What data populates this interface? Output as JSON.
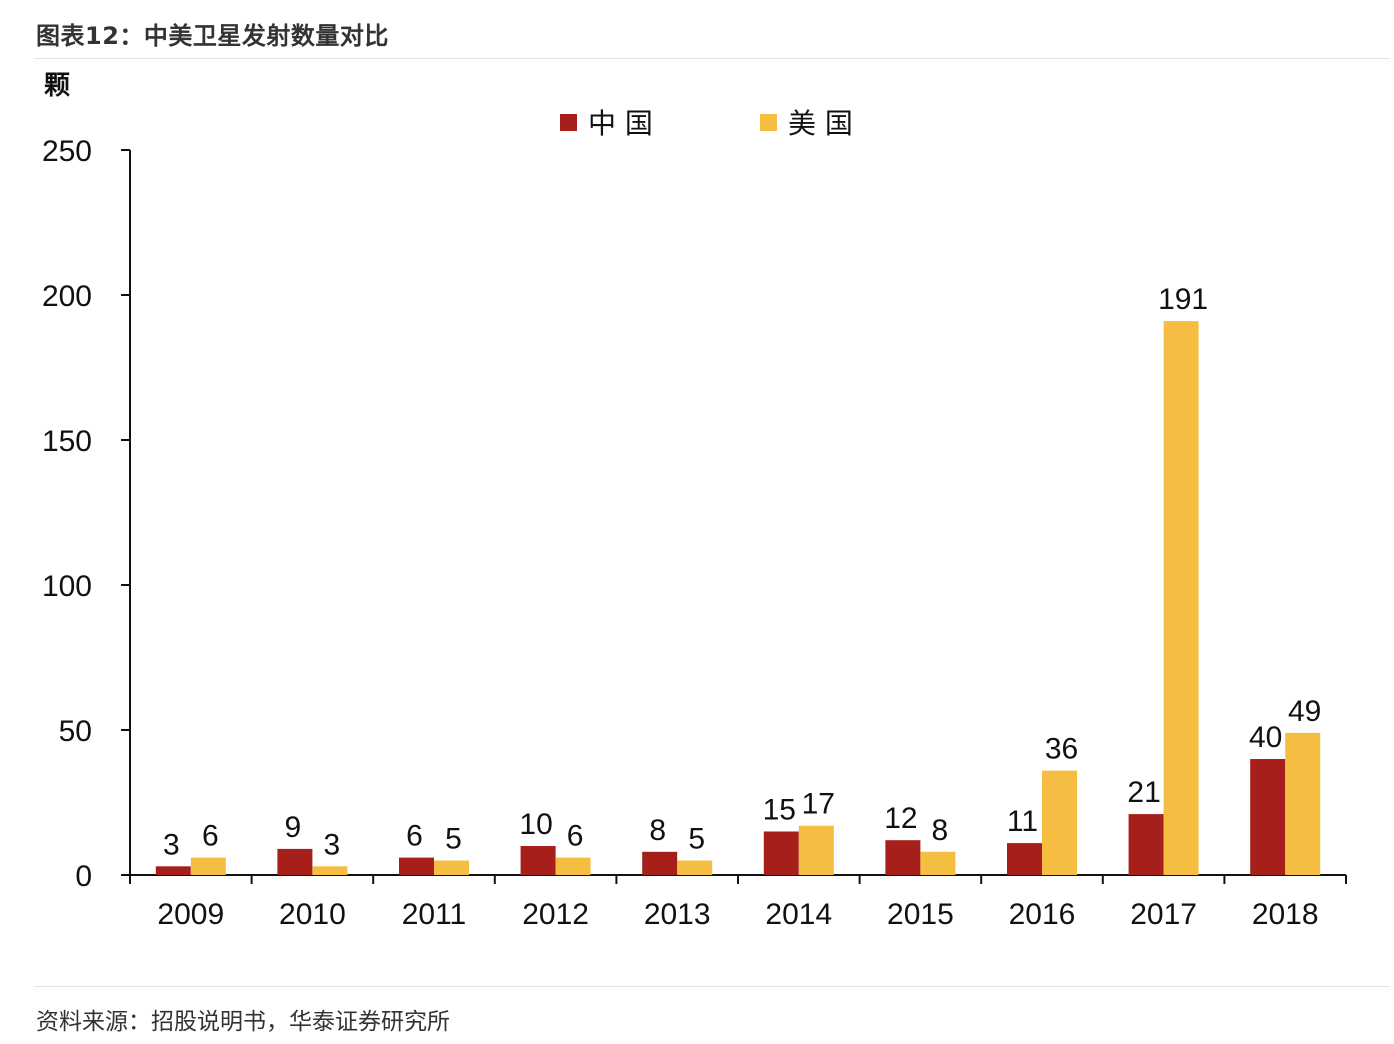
{
  "figure": {
    "title": "图表12：中美卫星发射数量对比",
    "source": "资料来源：招股说明书，华泰证券研究所"
  },
  "chart_data": {
    "type": "bar",
    "title": "",
    "xlabel": "",
    "ylabel": "颗",
    "ylim": [
      0,
      250
    ],
    "yticks": [
      0,
      50,
      100,
      150,
      200,
      250
    ],
    "grid": false,
    "legend_position": "top-center",
    "categories": [
      "2009",
      "2010",
      "2011",
      "2012",
      "2013",
      "2014",
      "2015",
      "2016",
      "2017",
      "2018"
    ],
    "series": [
      {
        "name": "中国",
        "color": "#a61f1a",
        "values": [
          3,
          9,
          6,
          10,
          8,
          15,
          12,
          11,
          21,
          40
        ]
      },
      {
        "name": "美国",
        "color": "#f5bd42",
        "values": [
          6,
          3,
          5,
          6,
          5,
          17,
          8,
          36,
          191,
          49
        ]
      }
    ]
  }
}
